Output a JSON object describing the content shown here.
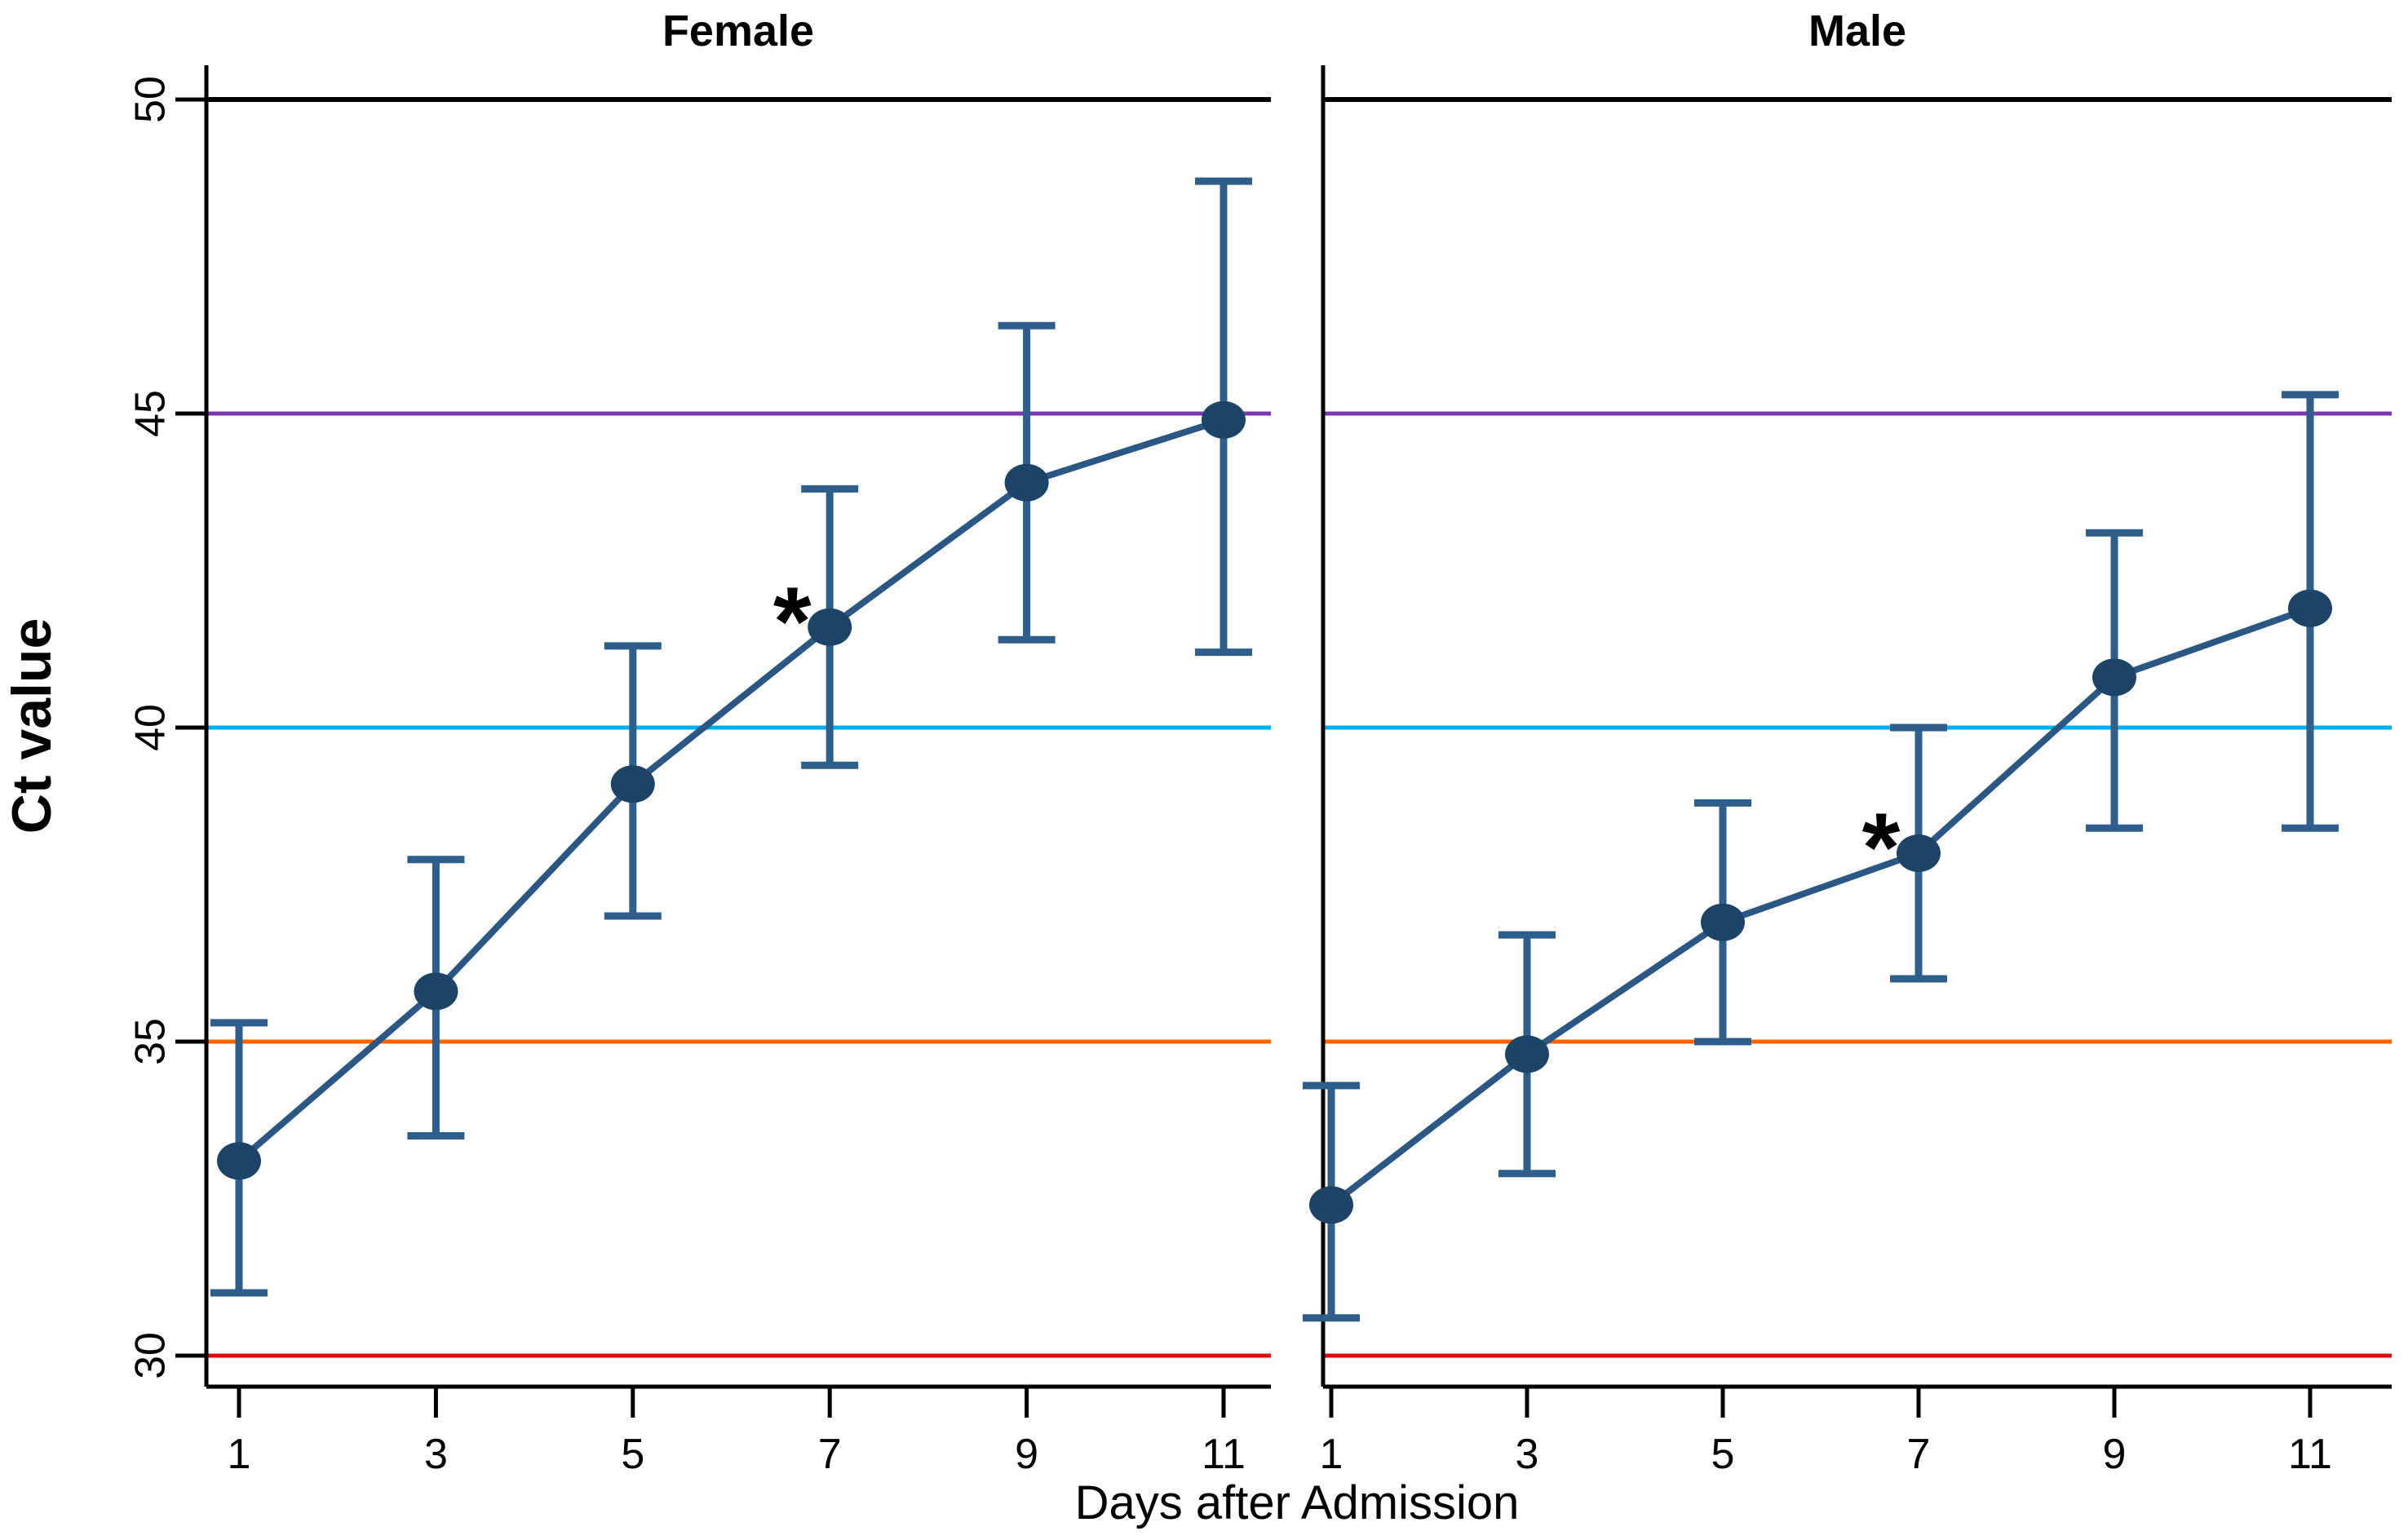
{
  "figure": {
    "background": "#FFFFFF",
    "series_style": {
      "line_color": "#2A5783",
      "marker_color": "#1C4466",
      "error_bar_color": "#2E5E8C"
    },
    "axis_color": "#000000"
  },
  "chart_data": {
    "type": "line",
    "title": "",
    "xlabel": "Days after Admission",
    "ylabel": "Ct value",
    "ylim": [
      29.5,
      50.55
    ],
    "yticks": [
      30,
      35,
      40,
      45,
      50
    ],
    "ytick_labels": [
      "30",
      "35",
      "40",
      "45",
      "50"
    ],
    "xticks": [
      1,
      3,
      5,
      7,
      9,
      11
    ],
    "xtick_labels": [
      "1",
      "3",
      "5",
      "7",
      "9",
      "11"
    ],
    "grid": false,
    "legend": "none",
    "significance_marker": {
      "symbol": "*",
      "color": "#FA0F0F"
    },
    "reference_lines": [
      {
        "value": 50,
        "color": "#000000"
      },
      {
        "value": 45,
        "color": "#7D35B4"
      },
      {
        "value": 40,
        "color": "#00AEEF"
      },
      {
        "value": 35,
        "color": "#F96400"
      },
      {
        "value": 30,
        "color": "#D90D0D"
      }
    ],
    "panels": [
      {
        "title": "Female",
        "x": [
          1,
          3,
          5,
          7,
          9,
          11
        ],
        "mean": [
          33.1,
          35.8,
          39.1,
          41.6,
          43.9,
          44.9
        ],
        "ci_low": [
          31.0,
          33.5,
          37.0,
          39.4,
          41.4,
          41.2
        ],
        "ci_high": [
          35.3,
          37.9,
          41.3,
          43.8,
          46.4,
          48.7
        ],
        "significant_at": [
          7
        ]
      },
      {
        "title": "Male",
        "x": [
          1,
          3,
          5,
          7,
          9,
          11
        ],
        "mean": [
          32.4,
          34.8,
          36.9,
          38.0,
          40.8,
          41.9
        ],
        "ci_low": [
          30.6,
          32.9,
          35.0,
          36.0,
          38.4,
          38.4
        ],
        "ci_high": [
          34.3,
          36.7,
          38.8,
          40.0,
          43.1,
          45.3
        ],
        "significant_at": [
          7
        ]
      }
    ]
  }
}
